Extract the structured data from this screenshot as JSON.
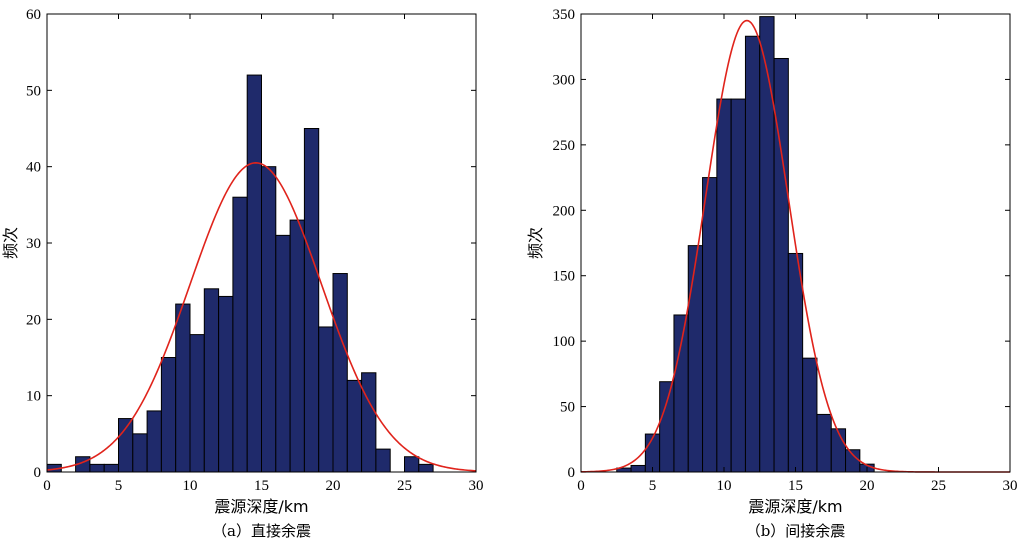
{
  "chart_data": [
    {
      "type": "bar",
      "subtype": "histogram",
      "caption": "（a）直接余震",
      "xlabel": "震源深度/km",
      "ylabel": "频次",
      "xlim": [
        0,
        30
      ],
      "ylim": [
        0,
        60
      ],
      "xticks": [
        0,
        5,
        10,
        15,
        20,
        25,
        30
      ],
      "yticks": [
        0,
        10,
        20,
        30,
        40,
        50,
        60
      ],
      "bin_width": 1.0,
      "bin_start": 0.0,
      "values": [
        1,
        0,
        2,
        1,
        1,
        7,
        5,
        8,
        15,
        22,
        18,
        24,
        23,
        36,
        52,
        40,
        31,
        33,
        45,
        19,
        26,
        12,
        13,
        3,
        0,
        2,
        1
      ],
      "fit": {
        "type": "normal",
        "mean": 14.6,
        "sd": 4.6,
        "peak": 40.5,
        "color": "#e0241c"
      },
      "bar_color": "#1f2a6b"
    },
    {
      "type": "bar",
      "subtype": "histogram",
      "caption": "（b）间接余震",
      "xlabel": "震源深度/km",
      "ylabel": "频次",
      "xlim": [
        0,
        30
      ],
      "ylim": [
        0,
        350
      ],
      "xticks": [
        0,
        5,
        10,
        15,
        20,
        25,
        30
      ],
      "yticks": [
        0,
        50,
        100,
        150,
        200,
        250,
        300,
        350
      ],
      "bin_width": 1.0,
      "bin_start": 2.5,
      "values": [
        3,
        5,
        29,
        69,
        120,
        173,
        225,
        285,
        285,
        333,
        348,
        316,
        167,
        87,
        44,
        33,
        17,
        6
      ],
      "fit": {
        "type": "normal",
        "mean": 11.6,
        "sd": 2.9,
        "peak": 345,
        "color": "#e0241c"
      },
      "bar_color": "#1f2a6b"
    }
  ]
}
